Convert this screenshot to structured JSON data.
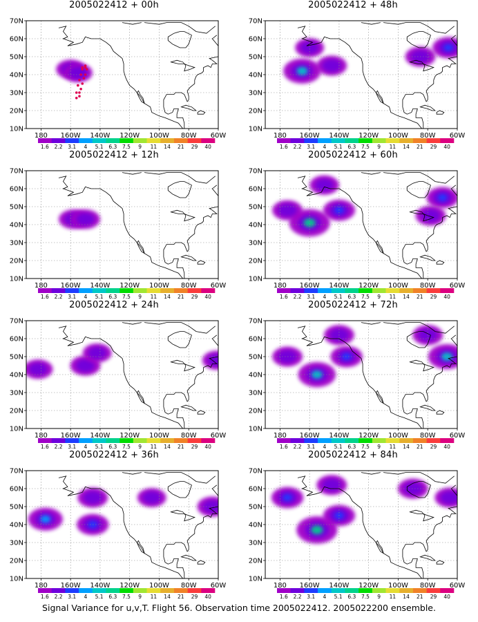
{
  "footer": "Signal Variance for u,v,T. Flight 56. Observation time 2005022412. 2005022200 ensemble.",
  "chart_data": [
    {
      "type": "heatmap",
      "title": "2005022412 + 00h",
      "blobs": [
        {
          "lon": -160,
          "lat": 43,
          "value": 2.0
        },
        {
          "lon": -155,
          "lat": 41,
          "value": 2.0
        }
      ],
      "flight_track": [
        [
          -150,
          44
        ],
        [
          -149,
          43
        ],
        [
          -150,
          40
        ],
        [
          -151,
          38
        ],
        [
          -152,
          35
        ],
        [
          -153,
          32
        ],
        [
          -154,
          30
        ],
        [
          -154,
          28
        ],
        [
          -156,
          27
        ],
        [
          -156,
          30
        ],
        [
          -155,
          34
        ],
        [
          -154,
          37
        ],
        [
          -153,
          40
        ],
        [
          -152,
          43
        ],
        [
          -152,
          44
        ],
        [
          -150,
          45
        ]
      ]
    },
    {
      "type": "heatmap",
      "title": "2005022412 + 48h",
      "blobs": [
        {
          "lon": -165,
          "lat": 42,
          "value": 5.1
        },
        {
          "lon": -145,
          "lat": 45,
          "value": 2.5
        },
        {
          "lon": -85,
          "lat": 50,
          "value": 2.5
        },
        {
          "lon": -66,
          "lat": 55,
          "value": 3.1
        },
        {
          "lon": -160,
          "lat": 55,
          "value": 2.0
        }
      ]
    },
    {
      "type": "heatmap",
      "title": "2005022412 + 12h",
      "blobs": [
        {
          "lon": -158,
          "lat": 43,
          "value": 2.2
        },
        {
          "lon": -150,
          "lat": 43,
          "value": 2.2
        }
      ]
    },
    {
      "type": "heatmap",
      "title": "2005022412 + 60h",
      "blobs": [
        {
          "lon": -160,
          "lat": 41,
          "value": 6.3
        },
        {
          "lon": -175,
          "lat": 48,
          "value": 2.5
        },
        {
          "lon": -140,
          "lat": 48,
          "value": 3.1
        },
        {
          "lon": -150,
          "lat": 62,
          "value": 2.2
        },
        {
          "lon": -70,
          "lat": 55,
          "value": 3.1
        },
        {
          "lon": -78,
          "lat": 45,
          "value": 2.5
        }
      ]
    },
    {
      "type": "heatmap",
      "title": "2005022412 + 24h",
      "blobs": [
        {
          "lon": -182,
          "lat": 43,
          "value": 2.2
        },
        {
          "lon": -150,
          "lat": 45,
          "value": 2.5
        },
        {
          "lon": -142,
          "lat": 52,
          "value": 2.0
        },
        {
          "lon": -61,
          "lat": 48,
          "value": 2.0
        }
      ]
    },
    {
      "type": "heatmap",
      "title": "2005022412 + 72h",
      "blobs": [
        {
          "lon": -155,
          "lat": 40,
          "value": 5.1
        },
        {
          "lon": -175,
          "lat": 50,
          "value": 2.5
        },
        {
          "lon": -135,
          "lat": 50,
          "value": 3.1
        },
        {
          "lon": -140,
          "lat": 62,
          "value": 2.5
        },
        {
          "lon": -67,
          "lat": 50,
          "value": 5.1
        },
        {
          "lon": -80,
          "lat": 62,
          "value": 2.5
        }
      ]
    },
    {
      "type": "heatmap",
      "title": "2005022412 + 36h",
      "blobs": [
        {
          "lon": -177,
          "lat": 43,
          "value": 4.0
        },
        {
          "lon": -145,
          "lat": 40,
          "value": 3.1
        },
        {
          "lon": -145,
          "lat": 55,
          "value": 2.5
        },
        {
          "lon": -105,
          "lat": 55,
          "value": 2.0
        },
        {
          "lon": -64,
          "lat": 50,
          "value": 2.5
        }
      ]
    },
    {
      "type": "heatmap",
      "title": "2005022412 + 84h",
      "blobs": [
        {
          "lon": -155,
          "lat": 37,
          "value": 6.3
        },
        {
          "lon": -175,
          "lat": 55,
          "value": 3.1
        },
        {
          "lon": -140,
          "lat": 45,
          "value": 3.1
        },
        {
          "lon": -145,
          "lat": 62,
          "value": 2.5
        },
        {
          "lon": -90,
          "lat": 60,
          "value": 2.5
        },
        {
          "lon": -65,
          "lat": 55,
          "value": 2.5
        }
      ]
    }
  ],
  "axes": {
    "x_ticks": [
      "180",
      "160W",
      "140W",
      "120W",
      "100W",
      "80W",
      "60W"
    ],
    "y_ticks": [
      "10N",
      "20N",
      "30N",
      "40N",
      "50N",
      "60N",
      "70N"
    ],
    "lon_range": [
      -190,
      -60
    ],
    "lat_range": [
      10,
      70
    ]
  },
  "colorbar": {
    "labels": [
      "1.6",
      "2.2",
      "3.1",
      "4",
      "5.1",
      "6.3",
      "7.5",
      "9",
      "11",
      "14",
      "21",
      "29",
      "40"
    ],
    "colors": [
      "#a000c8",
      "#6e00dc",
      "#1e3cff",
      "#00a0ff",
      "#00c8c8",
      "#00d28c",
      "#00dc00",
      "#a0e632",
      "#e6dc32",
      "#e6af2d",
      "#f08228",
      "#fa3c3c",
      "#dc0080"
    ]
  }
}
